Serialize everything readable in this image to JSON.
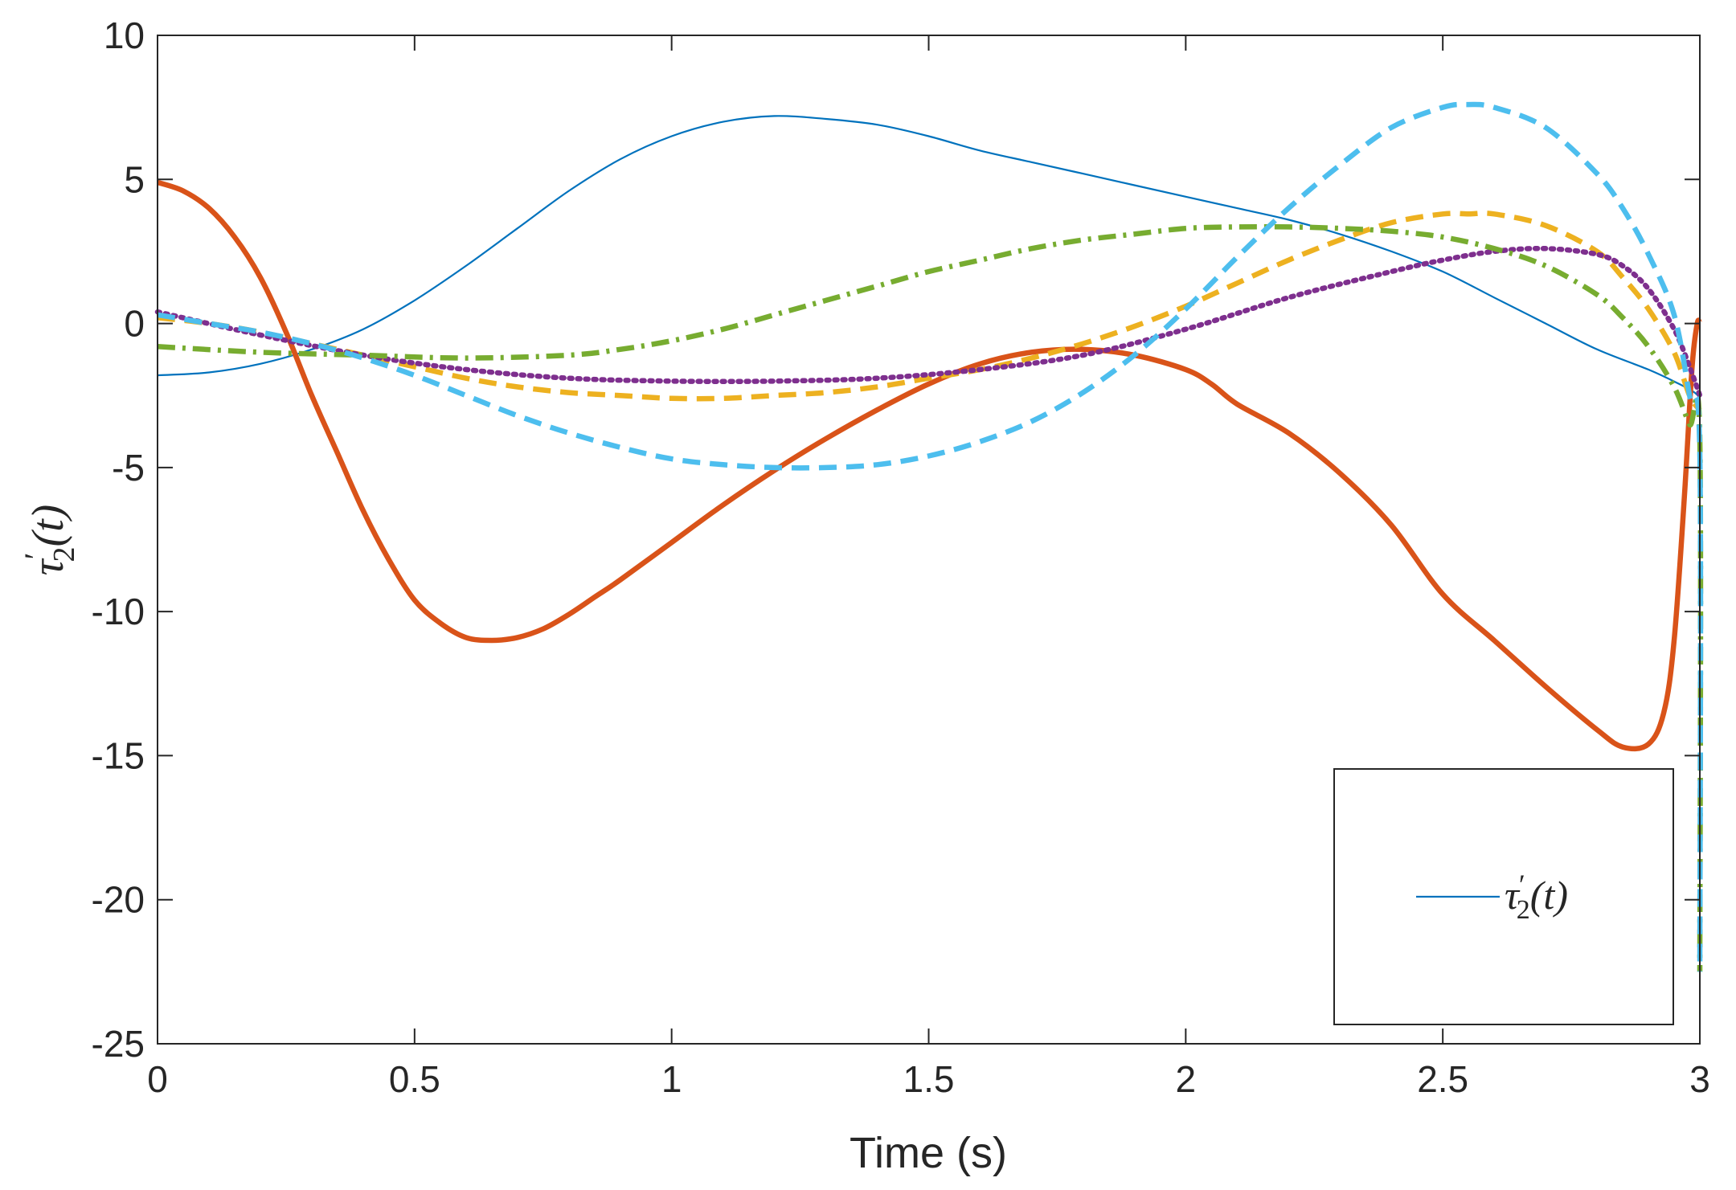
{
  "chart_data": {
    "type": "line",
    "title": "",
    "xlabel": "Time (s)",
    "ylabel": "τ′2(t)",
    "ylabel_parts": {
      "base": "τ",
      "prime": "′",
      "sub": "2",
      "arg": "(t)"
    },
    "xlim": [
      0,
      3
    ],
    "ylim": [
      -25,
      10
    ],
    "xticks": [
      0,
      0.5,
      1,
      1.5,
      2,
      2.5,
      3
    ],
    "xtick_labels": [
      "0",
      "0.5",
      "1",
      "1.5",
      "2",
      "2.5",
      "3"
    ],
    "yticks": [
      -25,
      -20,
      -15,
      -10,
      -5,
      0,
      5,
      10
    ],
    "ytick_labels": [
      "-25",
      "-20",
      "-15",
      "-10",
      "-5",
      "0",
      "5",
      "10"
    ],
    "grid": false,
    "legend": {
      "placement": "bottom-right",
      "entries": [
        {
          "label": "τ′2(t)",
          "parts": {
            "base": "τ",
            "prime": "′",
            "sub": "2",
            "arg": "(t)"
          },
          "series_index": 0
        }
      ]
    },
    "series": [
      {
        "name": "series-1-thin-blue",
        "color": "#0072BD",
        "style": "solid",
        "width": "thin",
        "x": [
          0,
          0.1,
          0.2,
          0.3,
          0.4,
          0.5,
          0.6,
          0.7,
          0.8,
          0.9,
          1.0,
          1.1,
          1.2,
          1.3,
          1.4,
          1.5,
          1.6,
          1.7,
          1.8,
          1.9,
          2.0,
          2.1,
          2.2,
          2.3,
          2.4,
          2.5,
          2.6,
          2.7,
          2.8,
          2.9,
          2.96,
          2.99,
          3.0
        ],
        "y": [
          -1.8,
          -1.7,
          -1.4,
          -0.9,
          -0.2,
          0.8,
          2.0,
          3.3,
          4.6,
          5.7,
          6.5,
          7.0,
          7.2,
          7.1,
          6.9,
          6.5,
          6.0,
          5.6,
          5.2,
          4.8,
          4.4,
          4.0,
          3.6,
          3.1,
          2.5,
          1.8,
          0.9,
          0.0,
          -0.9,
          -1.6,
          -2.1,
          -2.4,
          -2.6
        ]
      },
      {
        "name": "series-2-thick-orange",
        "color": "#D95319",
        "style": "solid",
        "width": "thick",
        "x": [
          0,
          0.05,
          0.1,
          0.15,
          0.2,
          0.25,
          0.3,
          0.35,
          0.4,
          0.45,
          0.5,
          0.55,
          0.6,
          0.65,
          0.7,
          0.75,
          0.8,
          0.85,
          0.9,
          1.0,
          1.1,
          1.2,
          1.3,
          1.4,
          1.5,
          1.6,
          1.7,
          1.8,
          1.9,
          2.0,
          2.05,
          2.1,
          2.2,
          2.3,
          2.4,
          2.5,
          2.6,
          2.7,
          2.8,
          2.85,
          2.9,
          2.93,
          2.95,
          2.97,
          2.985,
          2.995,
          3.0
        ],
        "y": [
          4.9,
          4.6,
          4.0,
          3.0,
          1.6,
          -0.3,
          -2.5,
          -4.5,
          -6.5,
          -8.2,
          -9.6,
          -10.4,
          -10.9,
          -11.0,
          -10.9,
          -10.6,
          -10.1,
          -9.5,
          -8.9,
          -7.6,
          -6.3,
          -5.1,
          -4.0,
          -3.0,
          -2.1,
          -1.4,
          -1.0,
          -0.9,
          -1.1,
          -1.6,
          -2.1,
          -2.8,
          -3.8,
          -5.2,
          -7.0,
          -9.4,
          -11.0,
          -12.6,
          -14.1,
          -14.7,
          -14.6,
          -13.5,
          -11.0,
          -6.0,
          -1.5,
          0.0,
          0.0
        ]
      },
      {
        "name": "series-3-dashed-yellow",
        "color": "#EDB120",
        "style": "dashed",
        "width": "thick",
        "x": [
          0,
          0.1,
          0.2,
          0.3,
          0.4,
          0.5,
          0.6,
          0.7,
          0.8,
          0.9,
          1.0,
          1.1,
          1.2,
          1.3,
          1.4,
          1.5,
          1.6,
          1.7,
          1.8,
          1.9,
          2.0,
          2.1,
          2.2,
          2.3,
          2.4,
          2.5,
          2.55,
          2.6,
          2.7,
          2.8,
          2.85,
          2.9,
          2.95,
          2.98,
          3.0
        ],
        "y": [
          0.2,
          0.0,
          -0.3,
          -0.7,
          -1.1,
          -1.5,
          -1.9,
          -2.2,
          -2.4,
          -2.5,
          -2.6,
          -2.6,
          -2.5,
          -2.4,
          -2.2,
          -1.9,
          -1.6,
          -1.2,
          -0.7,
          -0.1,
          0.6,
          1.4,
          2.2,
          2.9,
          3.5,
          3.8,
          3.8,
          3.8,
          3.4,
          2.5,
          1.6,
          0.5,
          -1.0,
          -2.5,
          -3.0
        ]
      },
      {
        "name": "series-4-dotted-purple",
        "color": "#7E2F8E",
        "style": "dotted",
        "width": "thick",
        "x": [
          0,
          0.2,
          0.4,
          0.6,
          0.8,
          1.0,
          1.2,
          1.4,
          1.6,
          1.8,
          2.0,
          2.2,
          2.4,
          2.5,
          2.6,
          2.7,
          2.8,
          2.85,
          2.9,
          2.95,
          2.98,
          3.0
        ],
        "y": [
          0.4,
          -0.4,
          -1.1,
          -1.6,
          -1.9,
          -2.0,
          -2.0,
          -1.9,
          -1.6,
          -1.1,
          -0.2,
          0.9,
          1.8,
          2.2,
          2.5,
          2.6,
          2.4,
          2.0,
          1.2,
          -0.2,
          -1.5,
          -2.5
        ]
      },
      {
        "name": "series-5-dashdot-green",
        "color": "#77AC30",
        "style": "dashdot",
        "width": "thick",
        "x": [
          0,
          0.2,
          0.4,
          0.6,
          0.8,
          0.9,
          1.0,
          1.1,
          1.2,
          1.3,
          1.4,
          1.5,
          1.6,
          1.7,
          1.8,
          1.9,
          2.0,
          2.1,
          2.2,
          2.3,
          2.4,
          2.5,
          2.6,
          2.7,
          2.8,
          2.85,
          2.9,
          2.95,
          2.98,
          3.0,
          3.0
        ],
        "y": [
          -0.8,
          -1.0,
          -1.1,
          -1.2,
          -1.1,
          -0.9,
          -0.6,
          -0.2,
          0.3,
          0.8,
          1.3,
          1.8,
          2.2,
          2.6,
          2.9,
          3.1,
          3.3,
          3.35,
          3.35,
          3.3,
          3.2,
          3.0,
          2.6,
          2.0,
          1.0,
          0.2,
          -0.8,
          -2.2,
          -3.5,
          -4.0,
          -22.5
        ]
      },
      {
        "name": "series-6-dashed-cyan",
        "color": "#4DBEEE",
        "style": "dashed",
        "width": "thick",
        "x": [
          0,
          0.1,
          0.2,
          0.3,
          0.4,
          0.5,
          0.6,
          0.7,
          0.8,
          0.9,
          1.0,
          1.1,
          1.2,
          1.3,
          1.4,
          1.5,
          1.6,
          1.7,
          1.8,
          1.9,
          2.0,
          2.1,
          2.2,
          2.3,
          2.4,
          2.5,
          2.55,
          2.6,
          2.7,
          2.8,
          2.85,
          2.9,
          2.95,
          2.98,
          3.0,
          3.0
        ],
        "y": [
          0.3,
          0.0,
          -0.3,
          -0.7,
          -1.2,
          -1.8,
          -2.5,
          -3.2,
          -3.8,
          -4.3,
          -4.7,
          -4.9,
          -5.0,
          -5.0,
          -4.9,
          -4.6,
          -4.1,
          -3.4,
          -2.4,
          -1.1,
          0.5,
          2.3,
          4.0,
          5.5,
          6.8,
          7.5,
          7.6,
          7.5,
          6.8,
          5.2,
          4.0,
          2.4,
          0.3,
          -2.5,
          -4.5,
          -22.5
        ]
      }
    ]
  }
}
